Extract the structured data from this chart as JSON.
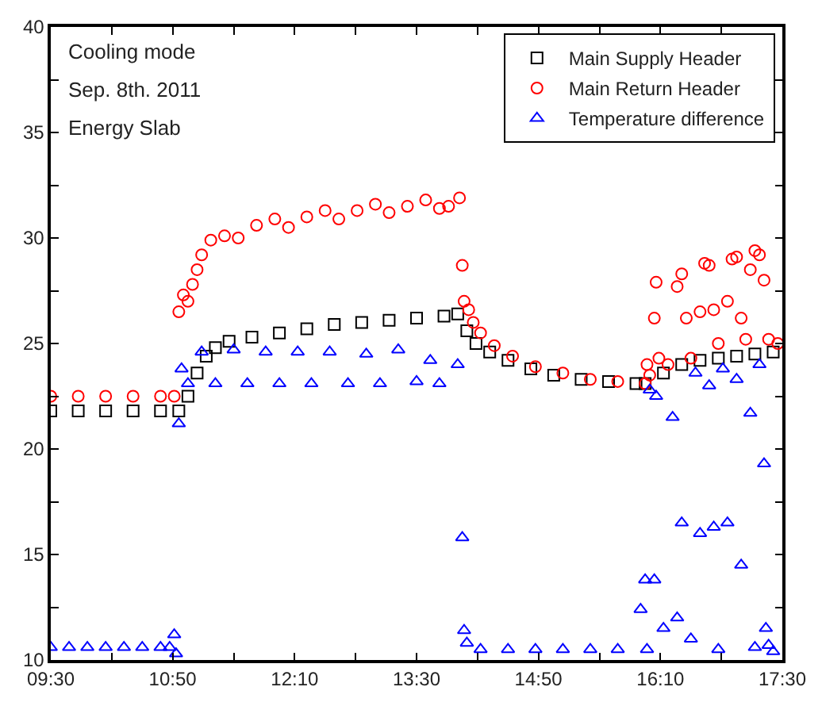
{
  "chart_data": {
    "type": "scatter",
    "xlim": [
      9.5,
      17.5
    ],
    "ylim": [
      10,
      40
    ],
    "xticks": [
      {
        "value": 9.5,
        "label": "09:30"
      },
      {
        "value": 10.167,
        "label": null
      },
      {
        "value": 10.833,
        "label": "10:50"
      },
      {
        "value": 11.5,
        "label": null
      },
      {
        "value": 12.167,
        "label": "12:10"
      },
      {
        "value": 12.833,
        "label": null
      },
      {
        "value": 13.5,
        "label": "13:30"
      },
      {
        "value": 14.167,
        "label": null
      },
      {
        "value": 14.833,
        "label": "14:50"
      },
      {
        "value": 15.5,
        "label": null
      },
      {
        "value": 16.167,
        "label": "16:10"
      },
      {
        "value": 16.833,
        "label": null
      },
      {
        "value": 17.5,
        "label": "17:30"
      }
    ],
    "yticks": [
      10,
      {
        "value": 12.5,
        "label": null
      },
      15,
      {
        "value": 17.5,
        "label": null
      },
      20,
      {
        "value": 22.5,
        "label": null
      },
      25,
      {
        "value": 27.5,
        "label": null
      },
      30,
      {
        "value": 32.5,
        "label": null
      },
      35,
      {
        "value": 37.5,
        "label": null
      },
      40
    ],
    "legend": "top right",
    "annotations": [
      "Cooling mode",
      "Sep. 8th. 2011",
      "Energy Slab"
    ],
    "series": [
      {
        "name": "Main Supply Header",
        "color": "#000000",
        "marker": "square",
        "x": [
          9.5,
          9.8,
          10.1,
          10.4,
          10.7,
          10.9,
          11.0,
          11.1,
          11.2,
          11.3,
          11.45,
          11.7,
          12.0,
          12.3,
          12.6,
          12.9,
          13.2,
          13.5,
          13.8,
          13.95,
          14.05,
          14.15,
          14.3,
          14.5,
          14.75,
          15.0,
          15.3,
          15.6,
          15.9,
          16.0,
          16.2,
          16.4,
          16.6,
          16.8,
          17.0,
          17.2,
          17.4
        ],
        "values": [
          21.8,
          21.8,
          21.8,
          21.8,
          21.8,
          21.8,
          22.5,
          23.6,
          24.4,
          24.8,
          25.1,
          25.3,
          25.5,
          25.7,
          25.9,
          26.0,
          26.1,
          26.2,
          26.3,
          26.4,
          25.6,
          25.0,
          24.6,
          24.2,
          23.8,
          23.5,
          23.3,
          23.2,
          23.1,
          23.1,
          23.6,
          24.0,
          24.2,
          24.3,
          24.4,
          24.5,
          24.6
        ]
      },
      {
        "name": "Main Return Header",
        "color": "#ff0000",
        "marker": "circle",
        "x": [
          9.5,
          9.8,
          10.1,
          10.4,
          10.7,
          10.85,
          10.9,
          10.95,
          11.0,
          11.05,
          11.1,
          11.15,
          11.25,
          11.4,
          11.55,
          11.75,
          11.95,
          12.1,
          12.3,
          12.5,
          12.65,
          12.85,
          13.05,
          13.2,
          13.4,
          13.6,
          13.75,
          13.85,
          13.97,
          14.0,
          14.02,
          14.07,
          14.12,
          14.2,
          14.35,
          14.55,
          14.8,
          15.1,
          15.4,
          15.7,
          16.0,
          16.02,
          16.05,
          16.1,
          16.12,
          16.15,
          16.25,
          16.35,
          16.4,
          16.45,
          16.5,
          16.6,
          16.65,
          16.7,
          16.75,
          16.8,
          16.9,
          16.95,
          17.0,
          17.05,
          17.1,
          17.15,
          17.2,
          17.25,
          17.3,
          17.35,
          17.45
        ],
        "values": [
          22.5,
          22.5,
          22.5,
          22.5,
          22.5,
          22.5,
          26.5,
          27.3,
          27.0,
          27.8,
          28.5,
          29.2,
          29.9,
          30.1,
          30.0,
          30.6,
          30.9,
          30.5,
          31.0,
          31.3,
          30.9,
          31.3,
          31.6,
          31.2,
          31.5,
          31.8,
          31.4,
          31.5,
          31.9,
          28.7,
          27.0,
          26.6,
          26.0,
          25.5,
          24.9,
          24.4,
          23.9,
          23.6,
          23.3,
          23.2,
          23.1,
          24.0,
          23.5,
          26.2,
          27.9,
          24.3,
          24.0,
          27.7,
          28.3,
          26.2,
          24.3,
          26.5,
          28.8,
          28.7,
          26.6,
          25.0,
          27.0,
          29.0,
          29.1,
          26.2,
          25.2,
          28.5,
          29.4,
          29.2,
          28.0,
          25.2,
          25.0
        ]
      },
      {
        "name": "Temperature difference",
        "color": "#0000ff",
        "marker": "triangle",
        "x": [
          9.5,
          9.7,
          9.9,
          10.1,
          10.3,
          10.5,
          10.7,
          10.8,
          10.85,
          10.87,
          10.9,
          10.93,
          11.0,
          11.15,
          11.3,
          11.5,
          11.65,
          11.85,
          12.0,
          12.2,
          12.35,
          12.55,
          12.75,
          12.95,
          13.1,
          13.3,
          13.5,
          13.65,
          13.75,
          13.95,
          14.0,
          14.02,
          14.05,
          14.2,
          14.5,
          14.8,
          15.1,
          15.4,
          15.7,
          15.95,
          16.0,
          16.02,
          16.05,
          16.1,
          16.12,
          16.2,
          16.3,
          16.35,
          16.4,
          16.5,
          16.55,
          16.6,
          16.7,
          16.75,
          16.8,
          16.85,
          16.9,
          17.0,
          17.05,
          17.15,
          17.2,
          17.25,
          17.3,
          17.32,
          17.35,
          17.4
        ],
        "values": [
          10.6,
          10.6,
          10.6,
          10.6,
          10.6,
          10.6,
          10.6,
          10.6,
          11.2,
          10.3,
          21.2,
          23.8,
          23.1,
          24.6,
          23.1,
          24.7,
          23.1,
          24.6,
          23.1,
          24.6,
          23.1,
          24.6,
          23.1,
          24.5,
          23.1,
          24.7,
          23.2,
          24.2,
          23.1,
          24.0,
          15.8,
          11.4,
          10.8,
          10.5,
          10.5,
          10.5,
          10.5,
          10.5,
          10.5,
          12.4,
          13.8,
          10.5,
          22.8,
          13.8,
          22.5,
          11.5,
          21.5,
          12.0,
          16.5,
          11.0,
          23.6,
          16.0,
          23.0,
          16.3,
          10.5,
          23.8,
          16.5,
          23.3,
          14.5,
          21.7,
          10.6,
          24.0,
          19.3,
          11.5,
          10.7,
          10.4
        ]
      }
    ]
  }
}
